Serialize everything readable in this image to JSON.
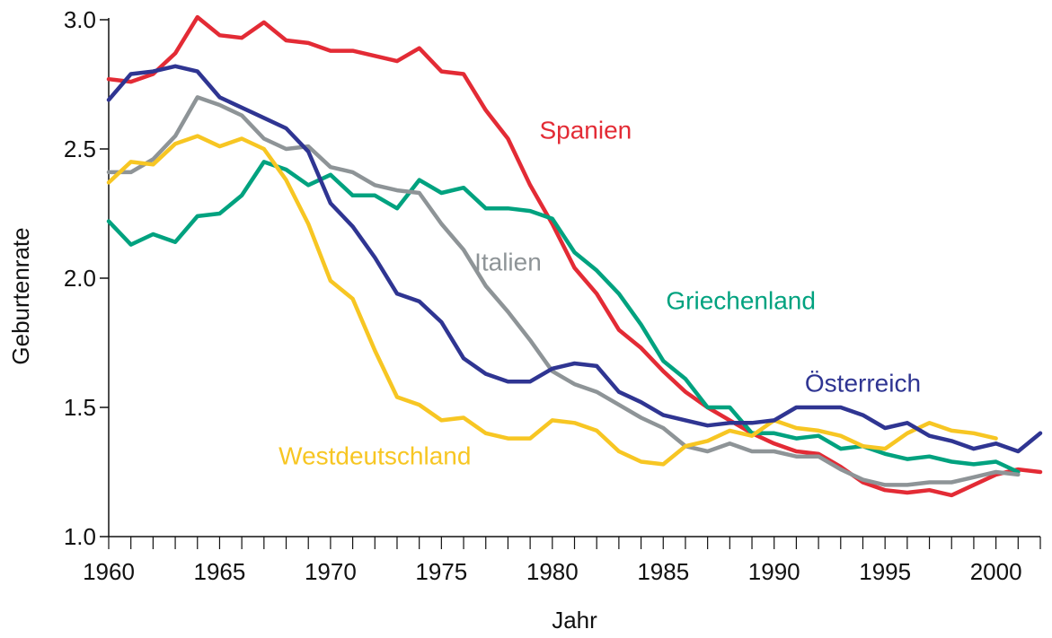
{
  "chart_data": {
    "type": "line",
    "title": "",
    "xlabel": "Jahr",
    "ylabel": "Geburtenrate",
    "xlim": [
      1960,
      2002
    ],
    "ylim": [
      1.0,
      3.0
    ],
    "x_ticks": [
      1960,
      1965,
      1970,
      1975,
      1980,
      1985,
      1990,
      1995,
      2000
    ],
    "x_tick_labels": [
      "1960",
      "1965",
      "1970",
      "1975",
      "1980",
      "1985",
      "1990",
      "1995",
      "2000"
    ],
    "y_ticks": [
      1.0,
      1.5,
      2.0,
      2.5,
      3.0
    ],
    "y_tick_labels": [
      "1.0",
      "1.5",
      "2.0",
      "2.5",
      "3.0"
    ],
    "grid": false,
    "legend": "inline labels",
    "series": [
      {
        "name": "Spanien",
        "color": "#e32b35",
        "x": [
          1960,
          1961,
          1962,
          1963,
          1964,
          1965,
          1966,
          1967,
          1968,
          1969,
          1970,
          1971,
          1972,
          1973,
          1974,
          1975,
          1976,
          1977,
          1978,
          1979,
          1980,
          1981,
          1982,
          1983,
          1984,
          1985,
          1986,
          1987,
          1988,
          1989,
          1990,
          1991,
          1992,
          1993,
          1994,
          1995,
          1996,
          1997,
          1998,
          1999,
          2000,
          2001,
          2002
        ],
        "values": [
          2.77,
          2.76,
          2.79,
          2.87,
          3.01,
          2.94,
          2.93,
          2.99,
          2.92,
          2.91,
          2.88,
          2.88,
          2.86,
          2.84,
          2.89,
          2.8,
          2.79,
          2.65,
          2.54,
          2.36,
          2.21,
          2.04,
          1.94,
          1.8,
          1.73,
          1.64,
          1.56,
          1.5,
          1.45,
          1.4,
          1.36,
          1.33,
          1.32,
          1.27,
          1.21,
          1.18,
          1.17,
          1.18,
          1.16,
          1.2,
          1.24,
          1.26,
          1.25
        ],
        "label_x": 1981.5,
        "label_y": 2.54
      },
      {
        "name": "Griechenland",
        "color": "#00a27f",
        "x": [
          1960,
          1961,
          1962,
          1963,
          1964,
          1965,
          1966,
          1967,
          1968,
          1969,
          1970,
          1971,
          1972,
          1973,
          1974,
          1975,
          1976,
          1977,
          1978,
          1979,
          1980,
          1981,
          1982,
          1983,
          1984,
          1985,
          1986,
          1987,
          1988,
          1989,
          1990,
          1991,
          1992,
          1993,
          1994,
          1995,
          1996,
          1997,
          1998,
          1999,
          2000,
          2001
        ],
        "values": [
          2.22,
          2.13,
          2.17,
          2.14,
          2.24,
          2.25,
          2.32,
          2.45,
          2.42,
          2.36,
          2.4,
          2.32,
          2.32,
          2.27,
          2.38,
          2.33,
          2.35,
          2.27,
          2.27,
          2.26,
          2.23,
          2.1,
          2.03,
          1.94,
          1.82,
          1.68,
          1.61,
          1.5,
          1.5,
          1.4,
          1.4,
          1.38,
          1.39,
          1.34,
          1.35,
          1.32,
          1.3,
          1.31,
          1.29,
          1.28,
          1.29,
          1.25
        ],
        "label_x": 1988.5,
        "label_y": 1.88
      },
      {
        "name": "Italien",
        "color": "#8e9497",
        "x": [
          1960,
          1961,
          1962,
          1963,
          1964,
          1965,
          1966,
          1967,
          1968,
          1969,
          1970,
          1971,
          1972,
          1973,
          1974,
          1975,
          1976,
          1977,
          1978,
          1979,
          1980,
          1981,
          1982,
          1983,
          1984,
          1985,
          1986,
          1987,
          1988,
          1989,
          1990,
          1991,
          1992,
          1993,
          1994,
          1995,
          1996,
          1997,
          1998,
          1999,
          2000,
          2001
        ],
        "values": [
          2.41,
          2.41,
          2.46,
          2.55,
          2.7,
          2.67,
          2.63,
          2.54,
          2.5,
          2.51,
          2.43,
          2.41,
          2.36,
          2.34,
          2.33,
          2.21,
          2.11,
          1.97,
          1.87,
          1.76,
          1.64,
          1.59,
          1.56,
          1.51,
          1.46,
          1.42,
          1.35,
          1.33,
          1.36,
          1.33,
          1.33,
          1.31,
          1.31,
          1.26,
          1.22,
          1.2,
          1.2,
          1.21,
          1.21,
          1.23,
          1.25,
          1.24
        ],
        "label_x": 1978.0,
        "label_y": 2.03
      },
      {
        "name": "Westdeutschland",
        "color": "#f7c623",
        "x": [
          1960,
          1961,
          1962,
          1963,
          1964,
          1965,
          1966,
          1967,
          1968,
          1969,
          1970,
          1971,
          1972,
          1973,
          1974,
          1975,
          1976,
          1977,
          1978,
          1979,
          1980,
          1981,
          1982,
          1983,
          1984,
          1985,
          1986,
          1987,
          1988,
          1989,
          1990,
          1991,
          1992,
          1993,
          1994,
          1995,
          1996,
          1997,
          1998,
          1999,
          2000
        ],
        "values": [
          2.37,
          2.45,
          2.44,
          2.52,
          2.55,
          2.51,
          2.54,
          2.5,
          2.38,
          2.21,
          1.99,
          1.92,
          1.72,
          1.54,
          1.51,
          1.45,
          1.46,
          1.4,
          1.38,
          1.38,
          1.45,
          1.44,
          1.41,
          1.33,
          1.29,
          1.28,
          1.35,
          1.37,
          1.41,
          1.39,
          1.45,
          1.42,
          1.41,
          1.39,
          1.35,
          1.34,
          1.4,
          1.44,
          1.41,
          1.4,
          1.38
        ],
        "label_x": 1972.0,
        "label_y": 1.28
      },
      {
        "name": "Österreich",
        "color": "#2f3592",
        "x": [
          1960,
          1961,
          1962,
          1963,
          1964,
          1965,
          1966,
          1967,
          1968,
          1969,
          1970,
          1971,
          1972,
          1973,
          1974,
          1975,
          1976,
          1977,
          1978,
          1979,
          1980,
          1981,
          1982,
          1983,
          1984,
          1985,
          1986,
          1987,
          1988,
          1989,
          1990,
          1991,
          1992,
          1993,
          1994,
          1995,
          1996,
          1997,
          1998,
          1999,
          2000,
          2001,
          2002
        ],
        "values": [
          2.69,
          2.79,
          2.8,
          2.82,
          2.8,
          2.7,
          2.66,
          2.62,
          2.58,
          2.49,
          2.29,
          2.2,
          2.08,
          1.94,
          1.91,
          1.83,
          1.69,
          1.63,
          1.6,
          1.6,
          1.65,
          1.67,
          1.66,
          1.56,
          1.52,
          1.47,
          1.45,
          1.43,
          1.44,
          1.44,
          1.45,
          1.5,
          1.5,
          1.5,
          1.47,
          1.42,
          1.44,
          1.39,
          1.37,
          1.34,
          1.36,
          1.33,
          1.4
        ],
        "label_x": 1994.0,
        "label_y": 1.56
      }
    ]
  }
}
